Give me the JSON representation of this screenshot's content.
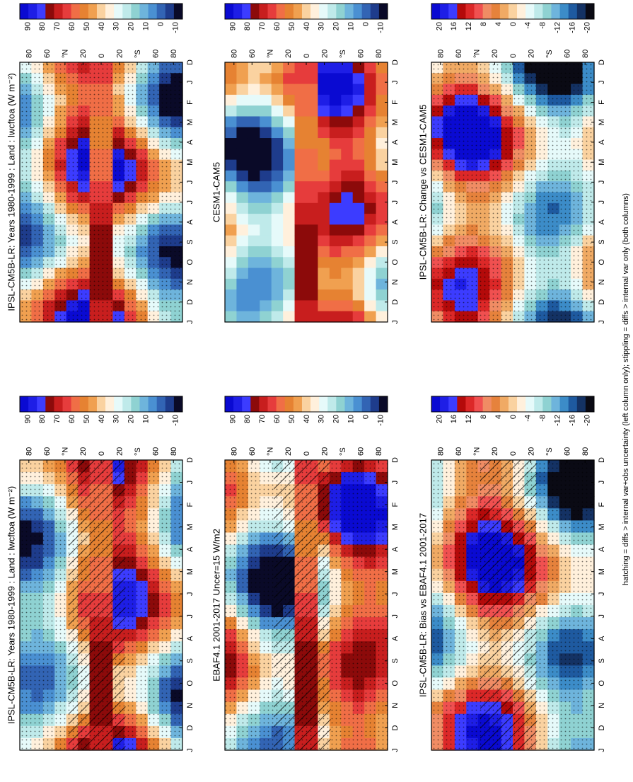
{
  "footnote": "hatching = diffs > internal var+obs uncertainty (left column only); stippling = diffs > internal var only (both columns)",
  "colors": {
    "abs_scale": [
      "#0a0ad2",
      "#1e1ee6",
      "#3c3cff",
      "#8c0a0a",
      "#c81e1e",
      "#e63c3c",
      "#f06e46",
      "#e68232",
      "#f0a050",
      "#fad2a0",
      "#fff0dc",
      "#e6fafa",
      "#bfeaea",
      "#8fd2d2",
      "#6eb4dc",
      "#4a90d2",
      "#3264b4",
      "#1e3c8c",
      "#0a0a28"
    ],
    "diff_scale": [
      "#0a0ad2",
      "#1e1ee6",
      "#3c3cff",
      "#b40a0a",
      "#dc2828",
      "#f05050",
      "#f08c64",
      "#e6823c",
      "#f0aa64",
      "#fad2a0",
      "#fff0dc",
      "#e6fafa",
      "#bfeaea",
      "#8fd2d2",
      "#6eb4dc",
      "#3c8cc8",
      "#1e5aa0",
      "#143264",
      "#0a0a14"
    ]
  },
  "panels": [
    {
      "id": "model_left",
      "title": "IPSL-CM5B-LR: Years 1980-1999 : Land : lwcftoa (W m⁻²)",
      "cbar_labels": [
        "90",
        "80",
        "70",
        "60",
        "50",
        "40",
        "30",
        "20",
        "10",
        "0",
        "-10"
      ],
      "lat_labels": [
        "80",
        "60",
        "°N",
        "20",
        "0",
        "20",
        "°S",
        "60",
        "80"
      ],
      "months": [
        "D",
        "J",
        "F",
        "M",
        "A",
        "M",
        "J",
        "J",
        "A",
        "S",
        "O",
        "N",
        "D",
        "J"
      ],
      "hatching": true,
      "stippling": true,
      "scale": "abs"
    },
    {
      "id": "model_right",
      "title": "IPSL-CM5B-LR: Years 1980-1999 : Land : lwcftoa (W m⁻²)",
      "cbar_labels": [
        "90",
        "80",
        "70",
        "60",
        "50",
        "40",
        "30",
        "20",
        "10",
        "0",
        "-10"
      ],
      "lat_labels": [
        "80",
        "60",
        "°N",
        "20",
        "0",
        "20",
        "°S",
        "60",
        "80"
      ],
      "months": [
        "D",
        "J",
        "F",
        "M",
        "A",
        "M",
        "J",
        "J",
        "A",
        "S",
        "O",
        "N",
        "D",
        "J"
      ],
      "hatching": false,
      "stippling": true,
      "scale": "abs"
    },
    {
      "id": "ref_left",
      "title": "EBAF4.1 2001-2017 Uncer=15 W/m2",
      "cbar_labels": [
        "90",
        "80",
        "70",
        "60",
        "50",
        "40",
        "30",
        "20",
        "10",
        "0",
        "-10"
      ],
      "lat_labels": [
        "80",
        "60",
        "°N",
        "20",
        "0",
        "20",
        "°S",
        "60",
        "80"
      ],
      "months": [
        "D",
        "J",
        "F",
        "M",
        "A",
        "M",
        "J",
        "J",
        "A",
        "S",
        "O",
        "N",
        "D",
        "J"
      ],
      "hatching": true,
      "stippling": true,
      "scale": "abs"
    },
    {
      "id": "ref_right",
      "title": "CESM1-CAM5",
      "cbar_labels": [
        "90",
        "80",
        "70",
        "60",
        "50",
        "40",
        "30",
        "20",
        "10",
        "0",
        "-10"
      ],
      "lat_labels": [
        "80",
        "60",
        "°N",
        "20",
        "0",
        "20",
        "°S",
        "60",
        "80"
      ],
      "months": [
        "D",
        "J",
        "F",
        "M",
        "A",
        "M",
        "J",
        "J",
        "A",
        "S",
        "O",
        "N",
        "D",
        "J"
      ],
      "hatching": false,
      "stippling": false,
      "scale": "abs"
    },
    {
      "id": "diff_left",
      "title": "IPSL-CM5B-LR: Bias vs EBAF4.1 2001-2017",
      "cbar_labels": [
        "20",
        "16",
        "12",
        "8",
        "4",
        "0",
        "-4",
        "-8",
        "-12",
        "-16",
        "-20"
      ],
      "lat_labels": [
        "80",
        "60",
        "°N",
        "20",
        "0",
        "20",
        "°S",
        "60",
        "80"
      ],
      "months": [
        "D",
        "J",
        "F",
        "M",
        "A",
        "M",
        "J",
        "J",
        "A",
        "S",
        "O",
        "N",
        "D",
        "J"
      ],
      "hatching": true,
      "stippling": true,
      "scale": "diff"
    },
    {
      "id": "diff_right",
      "title": "IPSL-CM5B-LR: Change vs CESM1-CAM5",
      "cbar_labels": [
        "20",
        "16",
        "12",
        "8",
        "4",
        "0",
        "-4",
        "-8",
        "-12",
        "-16",
        "-20"
      ],
      "lat_labels": [
        "80",
        "60",
        "°N",
        "20",
        "0",
        "20",
        "°S",
        "60",
        "80"
      ],
      "months": [
        "D",
        "J",
        "F",
        "M",
        "A",
        "M",
        "J",
        "J",
        "A",
        "S",
        "O",
        "N",
        "D",
        "J"
      ],
      "hatching": false,
      "stippling": true,
      "scale": "diff"
    }
  ],
  "chart_data": [
    {
      "type": "heatmap",
      "title": "IPSL-CM5B-LR: Years 1980-1999 : Land : lwcftoa (W m⁻²)",
      "xlabel": "",
      "ylabel": "",
      "x": [
        "D",
        "J",
        "F",
        "M",
        "A",
        "M",
        "J",
        "J",
        "A",
        "S",
        "O",
        "N",
        "D",
        "J"
      ],
      "y": [
        "80",
        "60",
        "°N",
        "20",
        "0",
        "20",
        "°S",
        "60",
        "80"
      ],
      "colorbar": [
        90,
        80,
        70,
        60,
        50,
        40,
        30,
        20,
        10,
        0,
        -10
      ]
    },
    {
      "type": "heatmap",
      "title": "IPSL-CM5B-LR: Years 1980-1999 : Land : lwcftoa (W m⁻²)",
      "xlabel": "",
      "ylabel": "",
      "x": [
        "D",
        "J",
        "F",
        "M",
        "A",
        "M",
        "J",
        "J",
        "A",
        "S",
        "O",
        "N",
        "D",
        "J"
      ],
      "y": [
        "80",
        "60",
        "°N",
        "20",
        "0",
        "20",
        "°S",
        "60",
        "80"
      ],
      "colorbar": [
        90,
        80,
        70,
        60,
        50,
        40,
        30,
        20,
        10,
        0,
        -10
      ]
    },
    {
      "type": "heatmap",
      "title": "EBAF4.1 2001-2017 Uncer=15 W/m2",
      "xlabel": "",
      "ylabel": "",
      "x": [
        "D",
        "J",
        "F",
        "M",
        "A",
        "M",
        "J",
        "J",
        "A",
        "S",
        "O",
        "N",
        "D",
        "J"
      ],
      "y": [
        "80",
        "60",
        "°N",
        "20",
        "0",
        "20",
        "°S",
        "60",
        "80"
      ],
      "colorbar": [
        90,
        80,
        70,
        60,
        50,
        40,
        30,
        20,
        10,
        0,
        -10
      ]
    },
    {
      "type": "heatmap",
      "title": "CESM1-CAM5",
      "xlabel": "",
      "ylabel": "",
      "x": [
        "D",
        "J",
        "F",
        "M",
        "A",
        "M",
        "J",
        "J",
        "A",
        "S",
        "O",
        "N",
        "D",
        "J"
      ],
      "y": [
        "80",
        "60",
        "°N",
        "20",
        "0",
        "20",
        "°S",
        "60",
        "80"
      ],
      "colorbar": [
        90,
        80,
        70,
        60,
        50,
        40,
        30,
        20,
        10,
        0,
        -10
      ]
    },
    {
      "type": "heatmap",
      "title": "IPSL-CM5B-LR: Bias vs EBAF4.1 2001-2017",
      "xlabel": "",
      "ylabel": "",
      "x": [
        "D",
        "J",
        "F",
        "M",
        "A",
        "M",
        "J",
        "J",
        "A",
        "S",
        "O",
        "N",
        "D",
        "J"
      ],
      "y": [
        "80",
        "60",
        "°N",
        "20",
        "0",
        "20",
        "°S",
        "60",
        "80"
      ],
      "colorbar": [
        20,
        16,
        12,
        8,
        4,
        0,
        -4,
        -8,
        -12,
        -16,
        -20
      ]
    },
    {
      "type": "heatmap",
      "title": "IPSL-CM5B-LR: Change vs CESM1-CAM5",
      "xlabel": "",
      "ylabel": "",
      "x": [
        "D",
        "J",
        "F",
        "M",
        "A",
        "M",
        "J",
        "J",
        "A",
        "S",
        "O",
        "N",
        "D",
        "J"
      ],
      "y": [
        "80",
        "60",
        "°N",
        "20",
        "0",
        "20",
        "°S",
        "60",
        "80"
      ],
      "colorbar": [
        20,
        16,
        12,
        8,
        4,
        0,
        -4,
        -8,
        -12,
        -16,
        -20
      ]
    }
  ]
}
